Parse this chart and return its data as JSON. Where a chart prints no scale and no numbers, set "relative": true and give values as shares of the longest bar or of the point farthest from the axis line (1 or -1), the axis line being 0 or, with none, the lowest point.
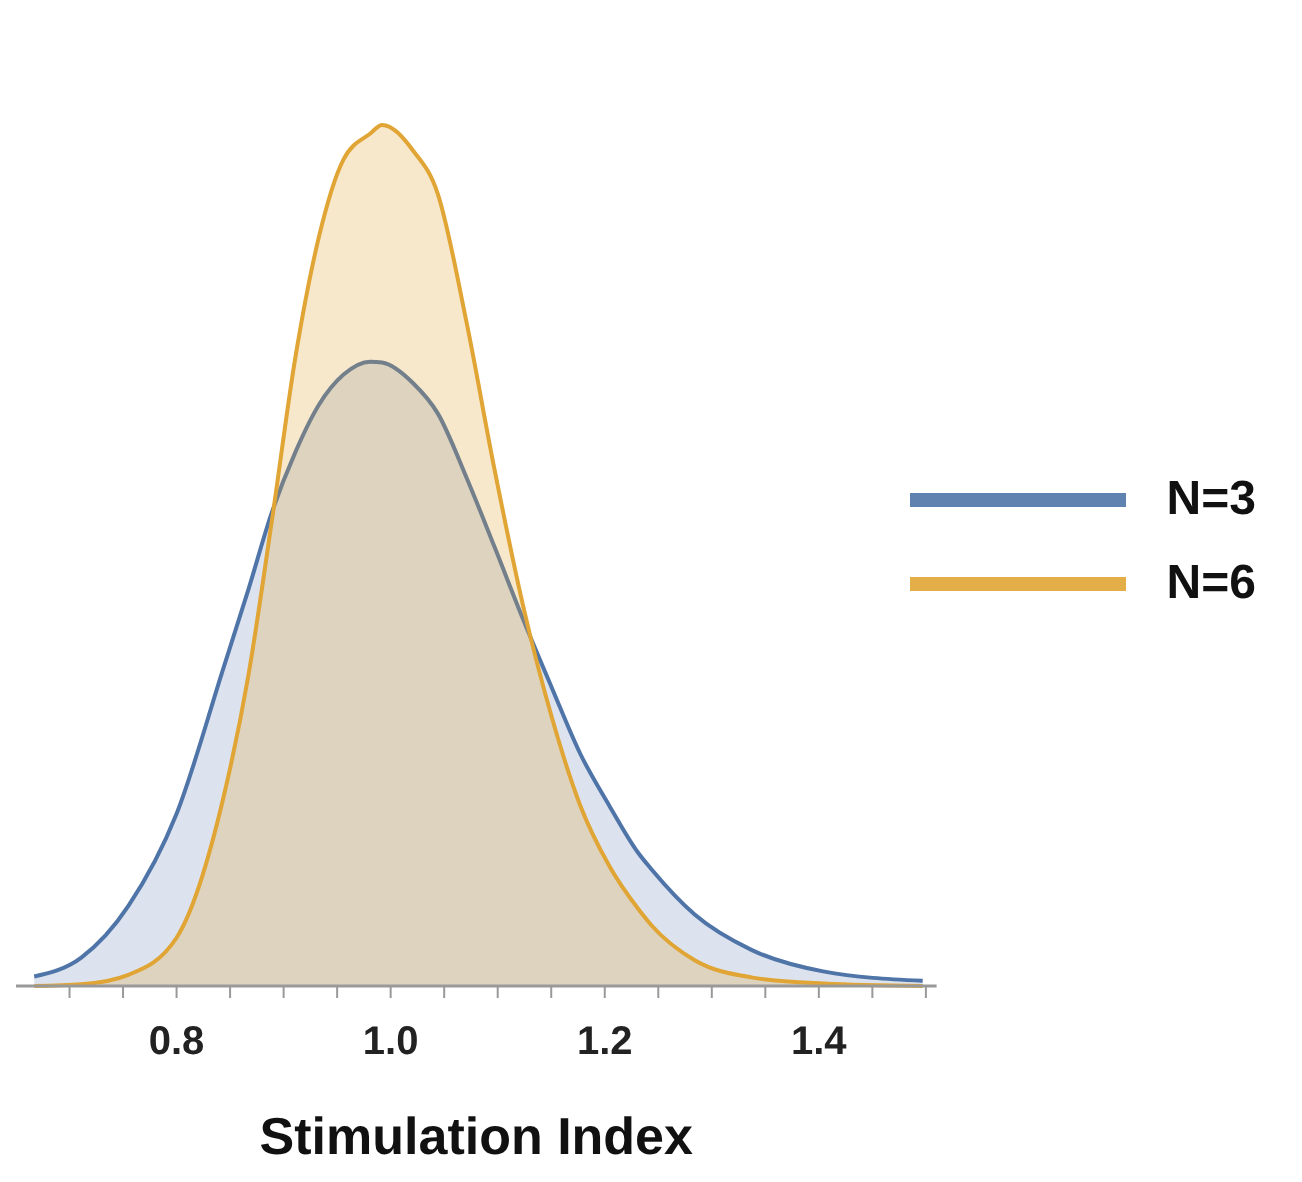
{
  "chart_data": {
    "type": "area",
    "xlabel": "Stimulation Index",
    "relative": true,
    "x": [
      0.667,
      0.711,
      0.755,
      0.8,
      0.844,
      0.867,
      0.889,
      0.911,
      0.933,
      0.956,
      0.981,
      0.992,
      1.021,
      1.044,
      1.071,
      1.097,
      1.124,
      1.151,
      1.177,
      1.204,
      1.231,
      1.244,
      1.284,
      1.337,
      1.404,
      1.497
    ],
    "series": [
      {
        "name": "N=3",
        "color": "#4f74a8",
        "values": [
          0.011,
          0.033,
          0.093,
          0.2,
          0.37,
          0.46,
          0.55,
          0.62,
          0.675,
          0.71,
          0.725,
          0.724,
          0.7,
          0.665,
          0.59,
          0.51,
          0.425,
          0.345,
          0.27,
          0.21,
          0.155,
          0.135,
          0.083,
          0.042,
          0.017,
          0.006
        ]
      },
      {
        "name": "N=6",
        "color": "#e0a534",
        "values": [
          0,
          0.002,
          0.013,
          0.056,
          0.22,
          0.36,
          0.54,
          0.73,
          0.87,
          0.96,
          0.99,
          1,
          0.97,
          0.92,
          0.77,
          0.6,
          0.44,
          0.31,
          0.21,
          0.14,
          0.09,
          0.07,
          0.03,
          0.01,
          0.003,
          0
        ]
      }
    ],
    "xlim": [
      0.65,
      1.51
    ],
    "xticks": [
      {
        "value": 0.7,
        "label": null
      },
      {
        "value": 0.75,
        "label": null
      },
      {
        "value": 0.8,
        "label": "0.8"
      },
      {
        "value": 0.85,
        "label": null
      },
      {
        "value": 0.9,
        "label": null
      },
      {
        "value": 0.95,
        "label": null
      },
      {
        "value": 1.0,
        "label": "1.0"
      },
      {
        "value": 1.05,
        "label": null
      },
      {
        "value": 1.1,
        "label": null
      },
      {
        "value": 1.15,
        "label": null
      },
      {
        "value": 1.2,
        "label": "1.2"
      },
      {
        "value": 1.25,
        "label": null
      },
      {
        "value": 1.3,
        "label": null
      },
      {
        "value": 1.35,
        "label": null
      },
      {
        "value": 1.4,
        "label": "1.4"
      },
      {
        "value": 1.45,
        "label": null
      },
      {
        "value": 1.5,
        "label": null
      }
    ],
    "grid": false,
    "legend": "right",
    "line_style": "solid",
    "marker": "none"
  }
}
